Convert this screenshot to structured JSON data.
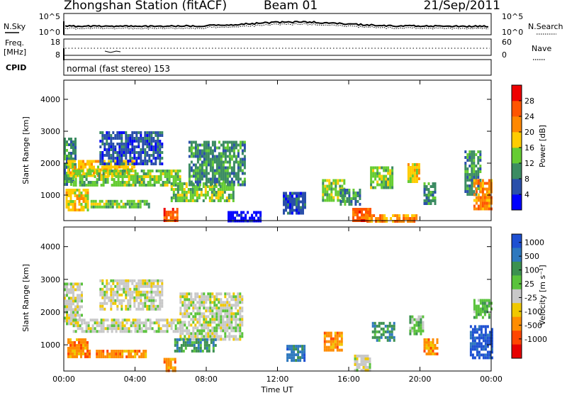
{
  "header": {
    "station": "Zhongshan Station (fitACF)",
    "beam": "Beam 01",
    "date": "21/Sep/2011"
  },
  "panels": {
    "nsky": {
      "label": "N.Sky",
      "ticks": [
        "10^5",
        "10^0"
      ]
    },
    "nsearch": {
      "label": "N.Search",
      "ticks": [
        "10^5",
        "10^0"
      ]
    },
    "freq": {
      "label_line1": "Freq.",
      "label_line2": "[MHz]",
      "ticks": [
        "18",
        "8"
      ]
    },
    "nave": {
      "label": "Nave",
      "ticks": [
        "60",
        "0"
      ]
    },
    "cpid": {
      "label": "CPID",
      "text": "normal (fast stereo) 153"
    }
  },
  "chart_data": [
    {
      "type": "heatmap",
      "name": "power",
      "x_ticks": [
        "00:00",
        "04:00",
        "08:00",
        "12:00",
        "16:00",
        "20:00",
        "00:00"
      ],
      "xlim_hours": [
        0,
        24
      ],
      "ylabel": "Slant Range [km]",
      "y_ticks": [
        1000,
        2000,
        3000,
        4000
      ],
      "ylim": [
        200,
        4600
      ],
      "colorbar_label": "Power [dB]",
      "colorbar_ticks": [
        "4",
        "8",
        "12",
        "16",
        "20",
        "24",
        "28"
      ],
      "colors": [
        "#0000ff",
        "#2a4faa",
        "#3c8c62",
        "#66cc33",
        "#ffcc00",
        "#ff8800",
        "#ff5500",
        "#ee0000"
      ],
      "echo_regions": [
        {
          "t0": 0.0,
          "t1": 0.6,
          "r0": 1300,
          "r1": 2800,
          "level": 2
        },
        {
          "t0": 0.2,
          "t1": 4.0,
          "r0": 1600,
          "r1": 2100,
          "level": 4
        },
        {
          "t0": 0.5,
          "t1": 6.5,
          "r0": 1300,
          "r1": 1800,
          "level": 3
        },
        {
          "t0": 0.1,
          "t1": 1.3,
          "r0": 500,
          "r1": 1200,
          "level": 4
        },
        {
          "t0": 1.5,
          "t1": 4.8,
          "r0": 600,
          "r1": 850,
          "level": 3
        },
        {
          "t0": 2.0,
          "t1": 5.5,
          "r0": 2000,
          "r1": 3000,
          "level": 1
        },
        {
          "t0": 5.6,
          "t1": 6.4,
          "r0": 200,
          "r1": 600,
          "level": 6
        },
        {
          "t0": 6.0,
          "t1": 9.5,
          "r0": 800,
          "r1": 1400,
          "level": 3
        },
        {
          "t0": 7.0,
          "t1": 10.2,
          "r0": 1300,
          "r1": 2700,
          "level": 2
        },
        {
          "t0": 9.2,
          "t1": 11.0,
          "r0": 200,
          "r1": 500,
          "level": 0
        },
        {
          "t0": 12.3,
          "t1": 13.6,
          "r0": 400,
          "r1": 1100,
          "level": 1
        },
        {
          "t0": 14.5,
          "t1": 15.8,
          "r0": 800,
          "r1": 1500,
          "level": 3
        },
        {
          "t0": 15.5,
          "t1": 16.6,
          "r0": 700,
          "r1": 1200,
          "level": 2
        },
        {
          "t0": 16.2,
          "t1": 17.2,
          "r0": 200,
          "r1": 600,
          "level": 6
        },
        {
          "t0": 17.0,
          "t1": 19.8,
          "r0": 200,
          "r1": 400,
          "level": 5
        },
        {
          "t0": 17.2,
          "t1": 18.5,
          "r0": 1200,
          "r1": 1900,
          "level": 3
        },
        {
          "t0": 19.3,
          "t1": 20.0,
          "r0": 1400,
          "r1": 2000,
          "level": 4
        },
        {
          "t0": 20.2,
          "t1": 20.8,
          "r0": 700,
          "r1": 1400,
          "level": 2
        },
        {
          "t0": 22.5,
          "t1": 23.4,
          "r0": 1000,
          "r1": 2400,
          "level": 2
        },
        {
          "t0": 23.0,
          "t1": 24.0,
          "r0": 600,
          "r1": 1500,
          "level": 5
        }
      ]
    },
    {
      "type": "heatmap",
      "name": "velocity",
      "x_ticks": [
        "00:00",
        "04:00",
        "08:00",
        "12:00",
        "16:00",
        "20:00",
        "00:00"
      ],
      "xlim_hours": [
        0,
        24
      ],
      "xlabel": "Time UT",
      "ylabel": "Slant Range [km]",
      "y_ticks": [
        1000,
        2000,
        3000,
        4000
      ],
      "ylim": [
        200,
        4600
      ],
      "colorbar_label": "Velocity [m s⁻¹]",
      "colorbar_ticks": [
        "1000",
        "500",
        "100",
        "25",
        "-25",
        "-100",
        "-500",
        "-1000"
      ],
      "colors": [
        "#1e50d2",
        "#2d78be",
        "#3c9150",
        "#5ac33c",
        "#c8c8c8",
        "#f0c800",
        "#ff8c00",
        "#ff4600",
        "#e60000"
      ],
      "echo_regions": [
        {
          "t0": 0.0,
          "t1": 1.0,
          "r0": 1600,
          "r1": 2900,
          "level": 4
        },
        {
          "t0": 0.5,
          "t1": 6.5,
          "r0": 1400,
          "r1": 1800,
          "level": 4
        },
        {
          "t0": 0.2,
          "t1": 1.5,
          "r0": 600,
          "r1": 1200,
          "level": 6
        },
        {
          "t0": 1.8,
          "t1": 4.6,
          "r0": 650,
          "r1": 850,
          "level": 6
        },
        {
          "t0": 2.0,
          "t1": 5.5,
          "r0": 2100,
          "r1": 3000,
          "level": 4
        },
        {
          "t0": 5.6,
          "t1": 6.3,
          "r0": 200,
          "r1": 600,
          "level": 6
        },
        {
          "t0": 6.5,
          "t1": 10.0,
          "r0": 1200,
          "r1": 2600,
          "level": 4
        },
        {
          "t0": 6.2,
          "t1": 8.5,
          "r0": 800,
          "r1": 1200,
          "level": 2
        },
        {
          "t0": 12.5,
          "t1": 13.5,
          "r0": 500,
          "r1": 1000,
          "level": 1
        },
        {
          "t0": 14.6,
          "t1": 15.6,
          "r0": 800,
          "r1": 1400,
          "level": 6
        },
        {
          "t0": 16.3,
          "t1": 17.2,
          "r0": 200,
          "r1": 700,
          "level": 4
        },
        {
          "t0": 17.3,
          "t1": 18.5,
          "r0": 1100,
          "r1": 1700,
          "level": 2
        },
        {
          "t0": 19.4,
          "t1": 20.2,
          "r0": 1300,
          "r1": 1900,
          "level": 3
        },
        {
          "t0": 20.2,
          "t1": 21.0,
          "r0": 700,
          "r1": 1200,
          "level": 6
        },
        {
          "t0": 22.8,
          "t1": 24.0,
          "r0": 600,
          "r1": 1600,
          "level": 0
        },
        {
          "t0": 23.0,
          "t1": 24.0,
          "r0": 1800,
          "r1": 2400,
          "level": 3
        }
      ]
    }
  ]
}
